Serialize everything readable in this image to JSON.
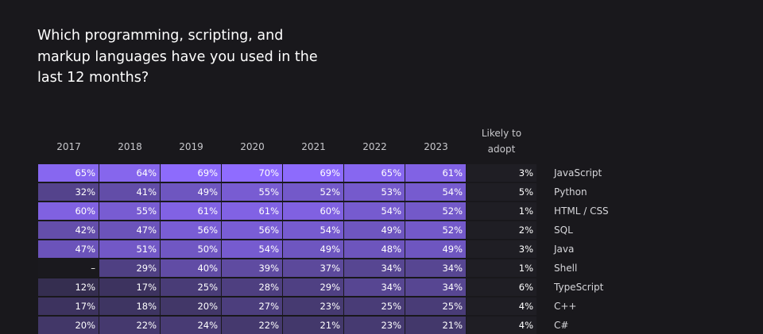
{
  "title": "Which programming, scripting, and markup languages have you used in the last 12 months?",
  "chart_data": {
    "type": "heatmap",
    "columns": [
      "2017",
      "2018",
      "2019",
      "2020",
      "2021",
      "2022",
      "2023"
    ],
    "adopt_header": "Likely to adopt",
    "rows": [
      {
        "label": "JavaScript",
        "values": [
          "65%",
          "64%",
          "69%",
          "70%",
          "69%",
          "65%",
          "61%"
        ],
        "nums": [
          65,
          64,
          69,
          70,
          69,
          65,
          61
        ],
        "adopt": "3%"
      },
      {
        "label": "Python",
        "values": [
          "32%",
          "41%",
          "49%",
          "55%",
          "52%",
          "53%",
          "54%"
        ],
        "nums": [
          32,
          41,
          49,
          55,
          52,
          53,
          54
        ],
        "adopt": "5%"
      },
      {
        "label": "HTML / CSS",
        "values": [
          "60%",
          "55%",
          "61%",
          "61%",
          "60%",
          "54%",
          "52%"
        ],
        "nums": [
          60,
          55,
          61,
          61,
          60,
          54,
          52
        ],
        "adopt": "1%"
      },
      {
        "label": "SQL",
        "values": [
          "42%",
          "47%",
          "56%",
          "56%",
          "54%",
          "49%",
          "52%"
        ],
        "nums": [
          42,
          47,
          56,
          56,
          54,
          49,
          52
        ],
        "adopt": "2%"
      },
      {
        "label": "Java",
        "values": [
          "47%",
          "51%",
          "50%",
          "54%",
          "49%",
          "48%",
          "49%"
        ],
        "nums": [
          47,
          51,
          50,
          54,
          49,
          48,
          49
        ],
        "adopt": "3%"
      },
      {
        "label": "Shell",
        "values": [
          "–",
          "29%",
          "40%",
          "39%",
          "37%",
          "34%",
          "34%"
        ],
        "nums": [
          null,
          29,
          40,
          39,
          37,
          34,
          34
        ],
        "adopt": "1%"
      },
      {
        "label": "TypeScript",
        "values": [
          "12%",
          "17%",
          "25%",
          "28%",
          "29%",
          "34%",
          "34%"
        ],
        "nums": [
          12,
          17,
          25,
          28,
          29,
          34,
          34
        ],
        "adopt": "6%"
      },
      {
        "label": "C++",
        "values": [
          "17%",
          "18%",
          "20%",
          "27%",
          "23%",
          "25%",
          "25%"
        ],
        "nums": [
          17,
          18,
          20,
          27,
          23,
          25,
          25
        ],
        "adopt": "4%"
      },
      {
        "label": "C#",
        "values": [
          "20%",
          "22%",
          "24%",
          "22%",
          "21%",
          "23%",
          "21%"
        ],
        "nums": [
          20,
          22,
          24,
          22,
          21,
          23,
          21
        ],
        "adopt": "4%"
      }
    ],
    "colors": {
      "low": "#322c4a",
      "high": "#8f6cff",
      "missing": "#1a191e",
      "background": "#19181c"
    }
  }
}
